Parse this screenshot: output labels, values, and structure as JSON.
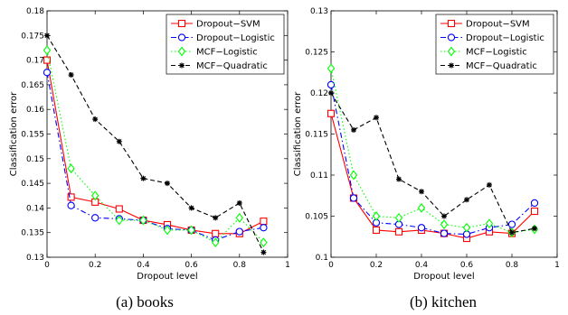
{
  "chart_data": [
    {
      "type": "line",
      "caption": "(a) books",
      "xlabel": "Dropout level",
      "ylabel": "Classification error",
      "xlim": [
        0,
        1
      ],
      "ylim": [
        0.13,
        0.18
      ],
      "xticks": [
        0,
        0.2,
        0.4,
        0.6,
        0.8,
        1
      ],
      "xtick_labels": [
        "0",
        "0.2",
        "0.4",
        "0.6",
        "0.8",
        "1"
      ],
      "yticks": [
        0.13,
        0.135,
        0.14,
        0.145,
        0.15,
        0.155,
        0.16,
        0.165,
        0.17,
        0.175,
        0.18
      ],
      "ytick_labels": [
        "0.13",
        "0.135",
        "0.14",
        "0.145",
        "0.15",
        "0.155",
        "0.16",
        "0.165",
        "0.17",
        "0.175",
        "0.18"
      ],
      "grid": false,
      "legend_position": "top-right",
      "x": [
        0,
        0.1,
        0.2,
        0.3,
        0.4,
        0.5,
        0.6,
        0.7,
        0.8,
        0.9
      ],
      "series": [
        {
          "name": "Dropout−SVM",
          "color": "#ff0000",
          "dash": "solid",
          "marker": "square",
          "values": [
            0.17,
            0.1422,
            0.1412,
            0.1398,
            0.1375,
            0.1366,
            0.1355,
            0.1348,
            0.1348,
            0.1373
          ]
        },
        {
          "name": "Dropout−Logistic",
          "color": "#0000ff",
          "dash": "dashdot",
          "marker": "circle",
          "values": [
            0.1675,
            0.1405,
            0.138,
            0.1378,
            0.1375,
            0.1358,
            0.1355,
            0.1335,
            0.1352,
            0.136
          ]
        },
        {
          "name": "MCF−Logistic",
          "color": "#00ff00",
          "dash": "dotted",
          "marker": "diamond",
          "values": [
            0.172,
            0.148,
            0.1425,
            0.1375,
            0.1375,
            0.1355,
            0.1355,
            0.133,
            0.138,
            0.133
          ]
        },
        {
          "name": "MCF−Quadratic",
          "color": "#000000",
          "dash": "dashed",
          "marker": "star",
          "values": [
            0.175,
            0.167,
            0.158,
            0.1535,
            0.146,
            0.145,
            0.14,
            0.138,
            0.141,
            0.131
          ]
        }
      ]
    },
    {
      "type": "line",
      "caption": "(b) kitchen",
      "xlabel": "Dropout level",
      "ylabel": "Classification error",
      "xlim": [
        0,
        1
      ],
      "ylim": [
        0.1,
        0.13
      ],
      "xticks": [
        0,
        0.2,
        0.4,
        0.6,
        0.8,
        1
      ],
      "xtick_labels": [
        "0",
        "0.2",
        "0.4",
        "0.6",
        "0.8",
        "1"
      ],
      "yticks": [
        0.1,
        0.105,
        0.11,
        0.115,
        0.12,
        0.125,
        0.13
      ],
      "ytick_labels": [
        "0.1",
        "0.105",
        "0.11",
        "0.115",
        "0.12",
        "0.125",
        "0.13"
      ],
      "grid": false,
      "legend_position": "top-right",
      "x": [
        0,
        0.1,
        0.2,
        0.3,
        0.4,
        0.5,
        0.6,
        0.7,
        0.8,
        0.9
      ],
      "series": [
        {
          "name": "Dropout−SVM",
          "color": "#ff0000",
          "dash": "solid",
          "marker": "square",
          "values": [
            0.1175,
            0.1072,
            0.1033,
            0.1031,
            0.1033,
            0.1029,
            0.1023,
            0.1031,
            0.1029,
            0.1056
          ]
        },
        {
          "name": "Dropout−Logistic",
          "color": "#0000ff",
          "dash": "dashdot",
          "marker": "circle",
          "values": [
            0.121,
            0.1072,
            0.1042,
            0.104,
            0.1036,
            0.1029,
            0.1028,
            0.1036,
            0.104,
            0.1066
          ]
        },
        {
          "name": "MCF−Logistic",
          "color": "#00ff00",
          "dash": "dotted",
          "marker": "diamond",
          "values": [
            0.123,
            0.11,
            0.105,
            0.1048,
            0.106,
            0.104,
            0.1036,
            0.1041,
            0.103,
            0.1034
          ]
        },
        {
          "name": "MCF−Quadratic",
          "color": "#000000",
          "dash": "dashed",
          "marker": "star",
          "values": [
            0.12,
            0.1155,
            0.117,
            0.1095,
            0.108,
            0.105,
            0.107,
            0.1088,
            0.103,
            0.1035
          ]
        }
      ]
    }
  ]
}
